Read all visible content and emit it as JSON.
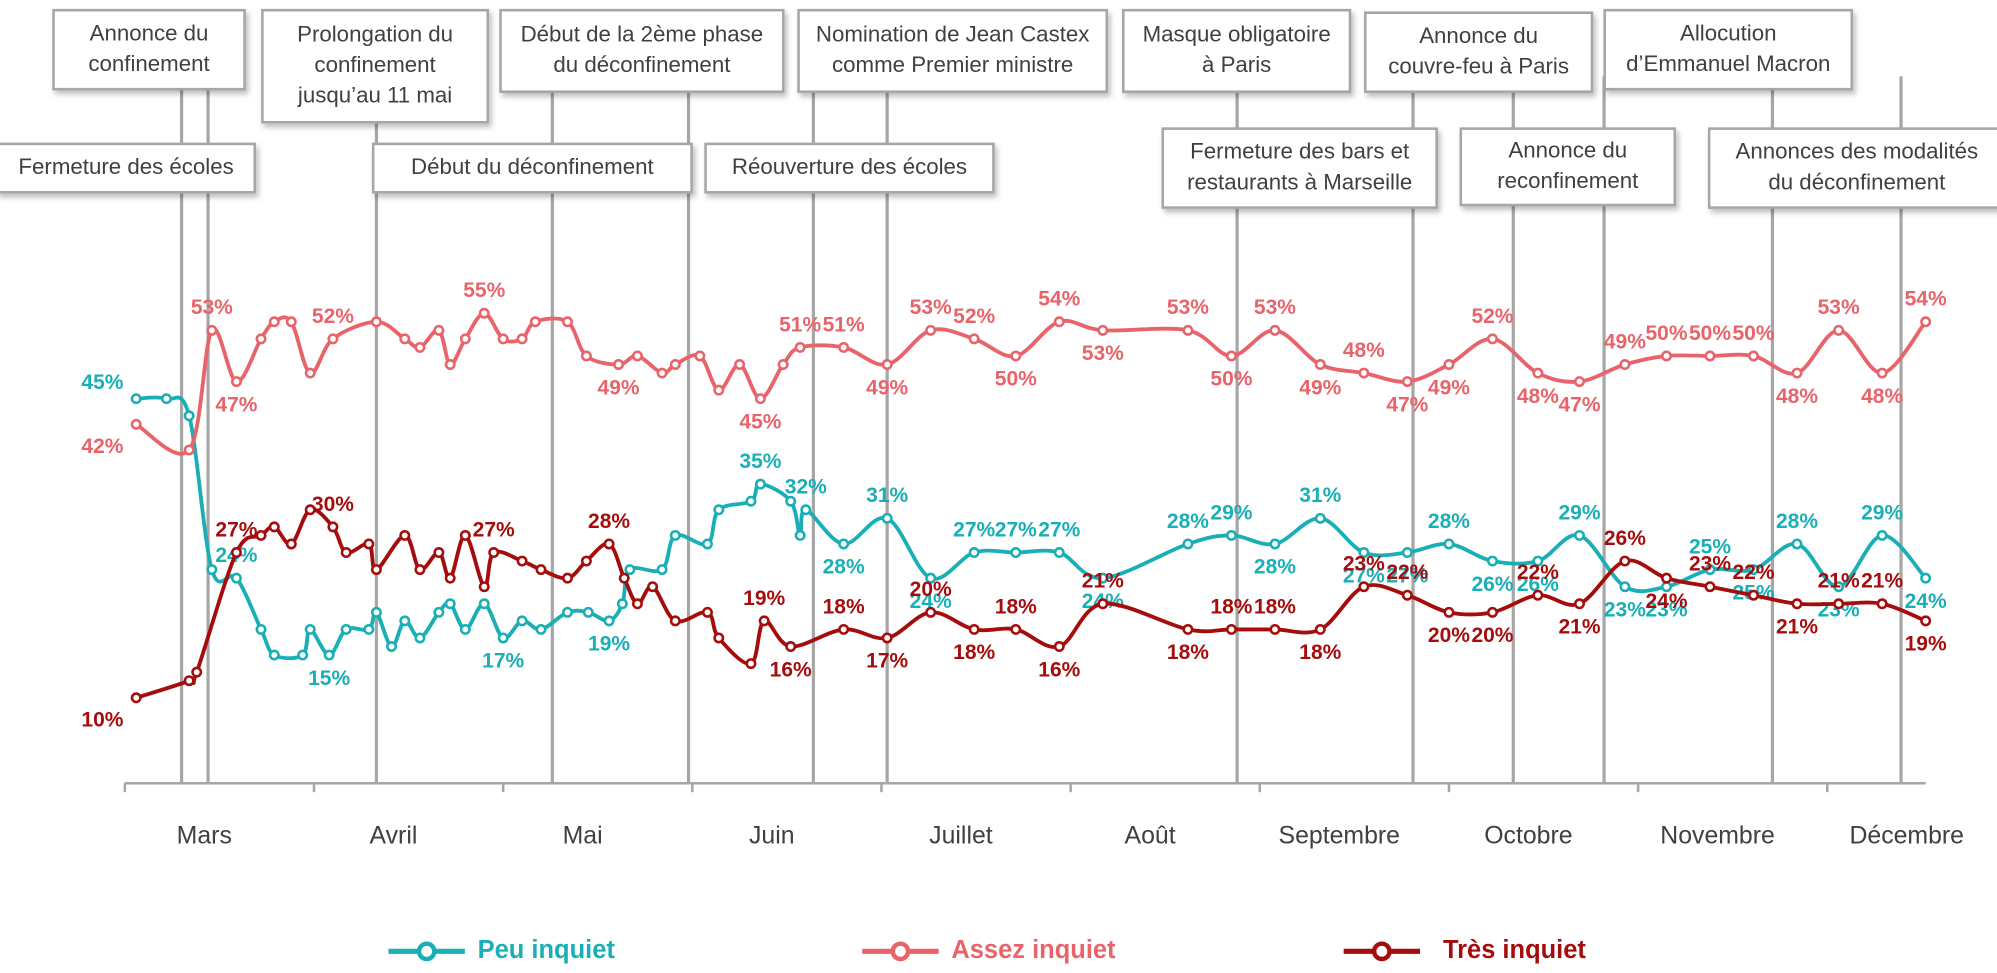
{
  "chart_data": {
    "type": "line",
    "xlim": [
      3,
      12.52
    ],
    "ylim": [
      0,
      70
    ],
    "xticks": [
      {
        "value": 3,
        "label": "Mars"
      },
      {
        "value": 4,
        "label": "Avril"
      },
      {
        "value": 5,
        "label": "Mai"
      },
      {
        "value": 6,
        "label": "Juin"
      },
      {
        "value": 7,
        "label": "Juillet"
      },
      {
        "value": 8,
        "label": "Août"
      },
      {
        "value": 9,
        "label": "Septembre"
      },
      {
        "value": 10,
        "label": "Octobre"
      },
      {
        "value": 11,
        "label": "Novembre"
      },
      {
        "value": 12,
        "label": "Décembre"
      }
    ],
    "events": [
      {
        "label": [
          "Fermeture des écoles"
        ],
        "x": 3.3
      },
      {
        "label": [
          "Annonce du",
          "confinement"
        ],
        "x": 3.44
      },
      {
        "label": [
          "Prolongation du",
          "confinement",
          "jusqu’au 11 mai"
        ],
        "x": 4.33
      },
      {
        "label": [
          "Début du déconfinement"
        ],
        "x": 5.26
      },
      {
        "label": [
          "Début de la 2ème phase",
          "du déconfinement"
        ],
        "x": 5.98
      },
      {
        "label": [
          "Réouverture des écoles"
        ],
        "x": 6.64
      },
      {
        "label": [
          "Nomination de Jean Castex",
          "comme Premier ministre"
        ],
        "x": 7.03
      },
      {
        "label": [
          "Masque obligatoire",
          "à Paris"
        ],
        "x": 8.88
      },
      {
        "label": [
          "Fermeture des bars et",
          "restaurants à Marseille"
        ],
        "x": 9.81
      },
      {
        "label": [
          "Annonce du",
          "couvre-feu à Paris"
        ],
        "x": 10.34
      },
      {
        "label": [
          "Annonce du",
          "reconfinement"
        ],
        "x": 10.82
      },
      {
        "label": [
          "Allocution",
          "d’Emmanuel Macron"
        ],
        "x": 11.71
      },
      {
        "label": [
          "Annonces des modalités",
          "du déconfinement"
        ],
        "x": 12.39
      }
    ],
    "series": [
      {
        "name": "Peu inquiet",
        "color": "#1aafb6",
        "x": [
          3.06,
          3.22,
          3.34,
          3.46,
          3.59,
          3.72,
          3.79,
          3.94,
          3.98,
          4.08,
          4.17,
          4.29,
          4.33,
          4.41,
          4.48,
          4.56,
          4.66,
          4.72,
          4.8,
          4.9,
          5.0,
          5.1,
          5.2,
          5.34,
          5.45,
          5.56,
          5.63,
          5.67,
          5.84,
          5.91,
          6.08,
          6.14,
          6.31,
          6.36,
          6.52,
          6.57,
          6.6,
          6.8,
          7.03,
          7.26,
          7.49,
          7.71,
          7.94,
          8.17,
          8.62,
          8.85,
          9.08,
          9.32,
          9.55,
          9.78,
          10.0,
          10.23,
          10.47,
          10.69,
          10.93,
          11.15,
          11.38,
          11.61,
          11.84,
          12.06,
          12.29,
          12.52
        ],
        "values": [
          45,
          45,
          43,
          25,
          24,
          18,
          15,
          15,
          18,
          15,
          18,
          18,
          20,
          16,
          19,
          17,
          20,
          21,
          18,
          21,
          17,
          19,
          18,
          20,
          20,
          19,
          21,
          25,
          25,
          29,
          28,
          32,
          33,
          35,
          33,
          29,
          32,
          28,
          31,
          24,
          27,
          27,
          27,
          24,
          28,
          29,
          28,
          31,
          27,
          27,
          28,
          26,
          26,
          29,
          23,
          23,
          25,
          25,
          28,
          23,
          29,
          24
        ],
        "value_labels": [
          "45%",
          null,
          null,
          null,
          "24%",
          null,
          null,
          null,
          null,
          "15%",
          null,
          null,
          null,
          null,
          null,
          null,
          null,
          null,
          null,
          null,
          "17%",
          null,
          null,
          null,
          null,
          "19%",
          null,
          null,
          null,
          null,
          null,
          null,
          null,
          "35%",
          null,
          null,
          "32%",
          "28%",
          "31%",
          "24%",
          "27%",
          "27%",
          "27%",
          "24%",
          "28%",
          "29%",
          "28%",
          "31%",
          "27%",
          "27%",
          "28%",
          "26%",
          "26%",
          "29%",
          "23%",
          "23%",
          "25%",
          "25%",
          "28%",
          "23%",
          "29%",
          "24%"
        ]
      },
      {
        "name": "Assez inquiet",
        "color": "#e8636a",
        "x": [
          3.06,
          3.34,
          3.46,
          3.59,
          3.72,
          3.79,
          3.88,
          3.98,
          4.1,
          4.33,
          4.48,
          4.56,
          4.66,
          4.72,
          4.8,
          4.9,
          5.0,
          5.1,
          5.17,
          5.34,
          5.44,
          5.61,
          5.71,
          5.84,
          5.91,
          6.04,
          6.14,
          6.25,
          6.36,
          6.48,
          6.57,
          6.8,
          7.03,
          7.26,
          7.49,
          7.71,
          7.94,
          8.17,
          8.62,
          8.85,
          9.08,
          9.32,
          9.55,
          9.78,
          10.0,
          10.23,
          10.47,
          10.69,
          10.93,
          11.15,
          11.38,
          11.61,
          11.84,
          12.06,
          12.29,
          12.52
        ],
        "values": [
          42,
          39,
          53,
          47,
          52,
          54,
          54,
          48,
          52,
          54,
          52,
          51,
          53,
          49,
          52,
          55,
          52,
          52,
          54,
          54,
          50,
          49,
          50,
          48,
          49,
          50,
          46,
          49,
          45,
          49,
          51,
          51,
          49,
          53,
          52,
          50,
          54,
          53,
          53,
          50,
          53,
          49,
          48,
          47,
          49,
          52,
          48,
          47,
          49,
          50,
          50,
          50,
          48,
          53,
          48,
          54
        ],
        "value_labels": [
          "42%",
          null,
          "53%",
          "47%",
          null,
          null,
          null,
          null,
          "52%",
          null,
          null,
          null,
          null,
          null,
          null,
          "55%",
          null,
          null,
          null,
          null,
          null,
          "49%",
          null,
          null,
          null,
          null,
          null,
          null,
          "45%",
          null,
          "51%",
          "51%",
          "49%",
          "53%",
          "52%",
          "50%",
          "54%",
          "53%",
          "53%",
          "50%",
          "53%",
          "49%",
          "48%",
          "47%",
          "49%",
          "52%",
          "48%",
          "47%",
          "49%",
          "50%",
          "50%",
          "50%",
          "48%",
          "53%",
          "48%",
          "54%"
        ]
      },
      {
        "name": "Très inquiet",
        "color": "#a50d0d",
        "x": [
          3.06,
          3.34,
          3.38,
          3.59,
          3.72,
          3.79,
          3.88,
          3.98,
          4.1,
          4.17,
          4.29,
          4.33,
          4.48,
          4.56,
          4.66,
          4.72,
          4.8,
          4.9,
          4.95,
          5.1,
          5.2,
          5.34,
          5.44,
          5.56,
          5.64,
          5.71,
          5.79,
          5.91,
          6.08,
          6.14,
          6.31,
          6.38,
          6.52,
          6.8,
          7.03,
          7.26,
          7.49,
          7.71,
          7.94,
          8.17,
          8.62,
          8.85,
          9.08,
          9.32,
          9.55,
          9.78,
          10.0,
          10.23,
          10.47,
          10.69,
          10.93,
          11.15,
          11.38,
          11.61,
          11.84,
          12.06,
          12.29,
          12.52
        ],
        "values": [
          10,
          12,
          13,
          27,
          29,
          30,
          28,
          32,
          30,
          27,
          28,
          25,
          29,
          25,
          27,
          24,
          29,
          23,
          27,
          26,
          25,
          24,
          26,
          28,
          24,
          21,
          23,
          19,
          20,
          17,
          14,
          19,
          16,
          18,
          17,
          20,
          18,
          18,
          16,
          21,
          18,
          18,
          18,
          18,
          23,
          22,
          20,
          20,
          22,
          21,
          26,
          24,
          23,
          22,
          21,
          21,
          21,
          19
        ],
        "value_labels": [
          "10%",
          null,
          null,
          "27%",
          null,
          null,
          null,
          null,
          "30%",
          null,
          null,
          null,
          null,
          null,
          null,
          null,
          null,
          null,
          "27%",
          null,
          null,
          null,
          null,
          "28%",
          null,
          null,
          null,
          null,
          null,
          null,
          null,
          "19%",
          "16%",
          "18%",
          "17%",
          "20%",
          "18%",
          "18%",
          "16%",
          "21%",
          "18%",
          "18%",
          "18%",
          "18%",
          "23%",
          "22%",
          "20%",
          "20%",
          "22%",
          "21%",
          "26%",
          "24%",
          "23%",
          "22%",
          "21%",
          "21%",
          "21%",
          "19%"
        ]
      }
    ]
  }
}
